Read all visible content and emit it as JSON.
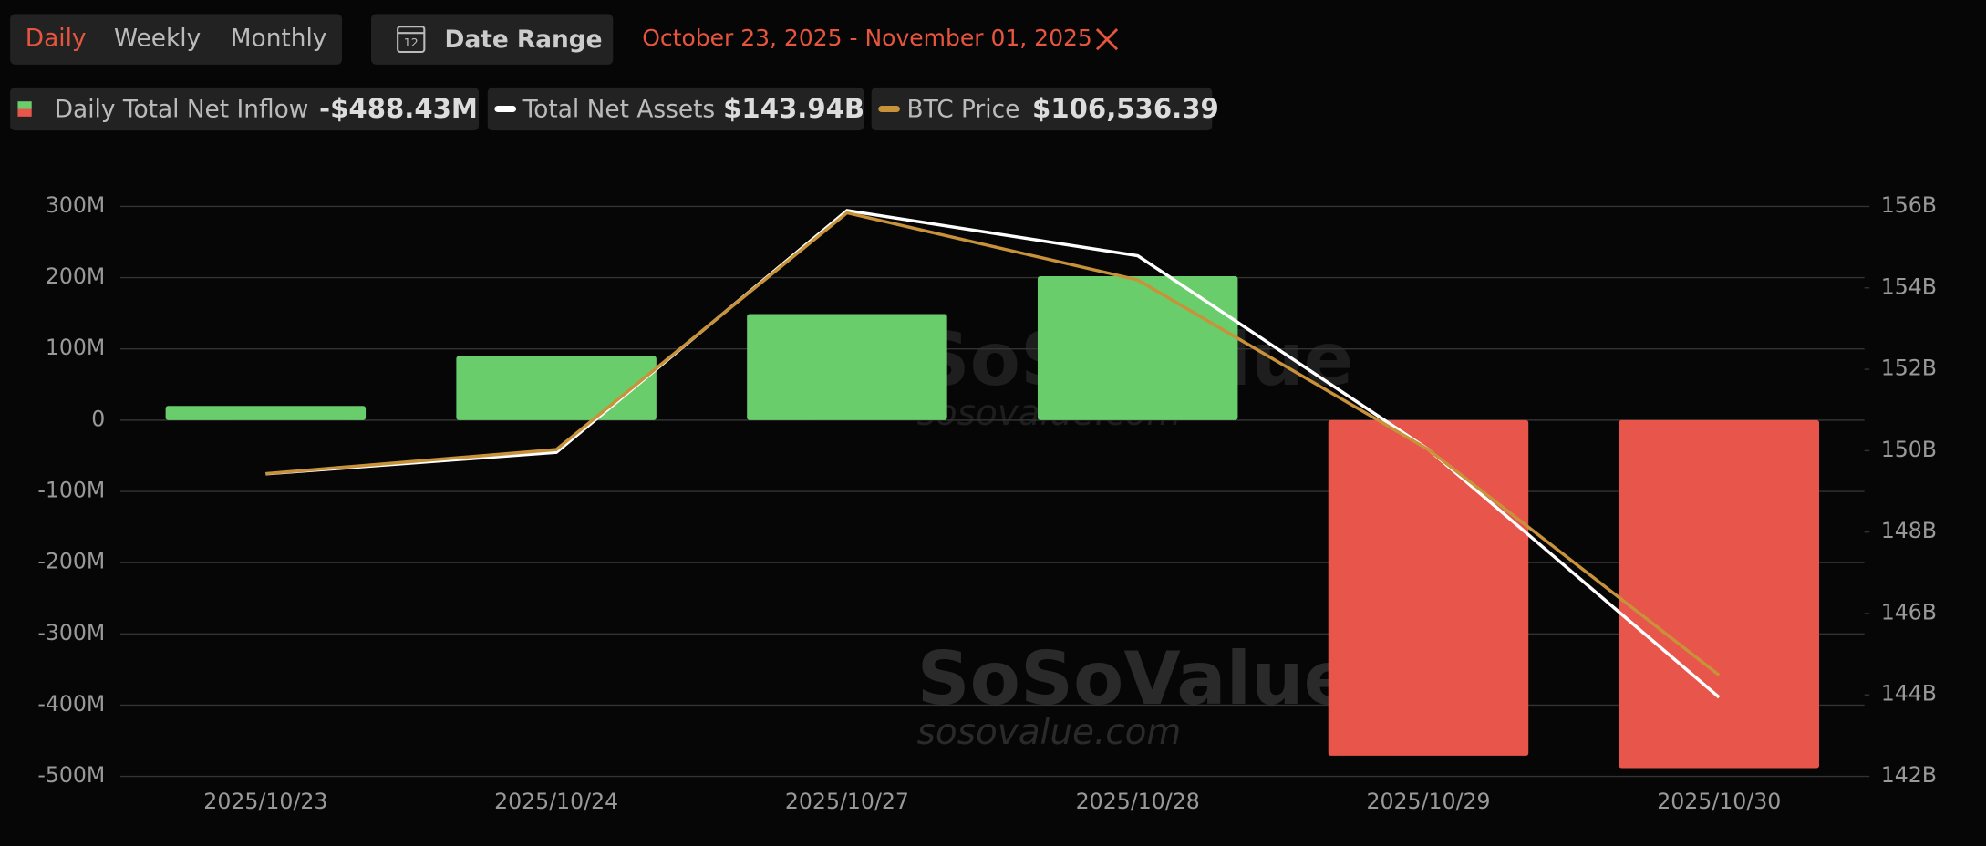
{
  "controls": {
    "periods": [
      "Daily",
      "Weekly",
      "Monthly"
    ],
    "calendar_day": "12",
    "date_range_button": "Date Range",
    "date_range": "October 23, 2025 - November 01, 2025"
  },
  "legend_values": [
    "-$488.43M",
    "$143.94B",
    "$106,536.39"
  ],
  "watermark": [
    "SoSoValue",
    "sosovalue.com"
  ],
  "chart_data": {
    "type": "bar",
    "categories": [
      "2025/10/23",
      "2025/10/24",
      "2025/10/27",
      "2025/10/28",
      "2025/10/29",
      "2025/10/30"
    ],
    "series": [
      {
        "name": "Daily Total Net Inflow",
        "type": "bar",
        "color": "#6acd6b",
        "negative_color": "#e8554a",
        "values": [
          20,
          90,
          149,
          202,
          -471,
          -488.43
        ]
      },
      {
        "name": "Total Net Assets",
        "type": "line",
        "axis": "y2",
        "color": "#ffffff",
        "values": [
          149.43,
          149.96,
          155.9,
          154.79,
          150.03,
          143.94
        ]
      },
      {
        "name": "BTC Price",
        "type": "line",
        "axis": "y3",
        "color": "#c8923a",
        "values": [
          109830,
          110224,
          114096,
          112998,
          110224,
          106536.39
        ]
      }
    ],
    "ylim": [
      -500,
      300
    ],
    "yticks": [
      {
        "value": 300,
        "label": "300M"
      },
      {
        "value": 200,
        "label": "200M"
      },
      {
        "value": 100,
        "label": "100M"
      },
      0,
      {
        "value": -100,
        "label": "-100M"
      },
      {
        "value": -200,
        "label": "-200M"
      },
      {
        "value": -300,
        "label": "-300M"
      },
      {
        "value": -400,
        "label": "-400M"
      },
      {
        "value": -500,
        "label": "-500M"
      }
    ],
    "y2lim": [
      142,
      156
    ],
    "y2ticks": [
      {
        "value": 156,
        "label": "156B"
      },
      {
        "value": 154,
        "label": "154B"
      },
      {
        "value": 152,
        "label": "152B"
      },
      {
        "value": 150,
        "label": "150B"
      },
      {
        "value": 148,
        "label": "148B"
      },
      {
        "value": 146,
        "label": "146B"
      },
      {
        "value": 144,
        "label": "144B"
      },
      {
        "value": 142,
        "label": "142B"
      }
    ],
    "y3lim": [
      104880,
      114200
    ],
    "grid": true
  }
}
